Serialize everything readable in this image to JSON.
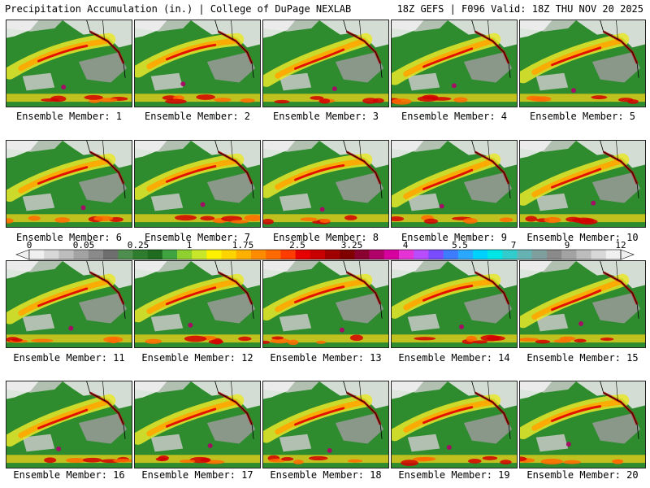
{
  "header": {
    "title": "Precipitation Accumulation (in.) | College of DuPage NEXLAB",
    "run_info": "18Z GEFS | F096 Valid: 18Z THU NOV 20 2025"
  },
  "panel_label_prefix": "Ensemble Member: ",
  "members": [
    "1",
    "2",
    "3",
    "4",
    "5",
    "6",
    "7",
    "8",
    "9",
    "10",
    "11",
    "12",
    "13",
    "14",
    "15",
    "16",
    "17",
    "18",
    "19",
    "20"
  ],
  "colorbar": {
    "tick_labels": [
      "0",
      "0.05",
      "0.25",
      "1",
      "1.75",
      "2.5",
      "3.25",
      "4",
      "5.5",
      "7",
      "9",
      "12"
    ],
    "colors": [
      "#f0f0f0",
      "#d8d8d8",
      "#bdbdbd",
      "#a3a3a3",
      "#8a8a8a",
      "#6e6e6e",
      "#4e8e4e",
      "#2e7d2e",
      "#1f6b1f",
      "#3fa33f",
      "#8fcf2f",
      "#c8e62a",
      "#fff200",
      "#ffd400",
      "#ffb000",
      "#ff8c00",
      "#ff6a00",
      "#ff3c00",
      "#e60000",
      "#c80000",
      "#a00000",
      "#800000",
      "#8a0030",
      "#b0006a",
      "#d6009f",
      "#e633d6",
      "#b84cff",
      "#7a4cff",
      "#3d7bff",
      "#2aa8ff",
      "#00d2ff",
      "#00e6e6",
      "#33cccc",
      "#66b3b3",
      "#7f9f9f",
      "#8a8a8a",
      "#a3a3a3",
      "#bdbdbd",
      "#d8d8d8",
      "#f0f0f0"
    ]
  }
}
